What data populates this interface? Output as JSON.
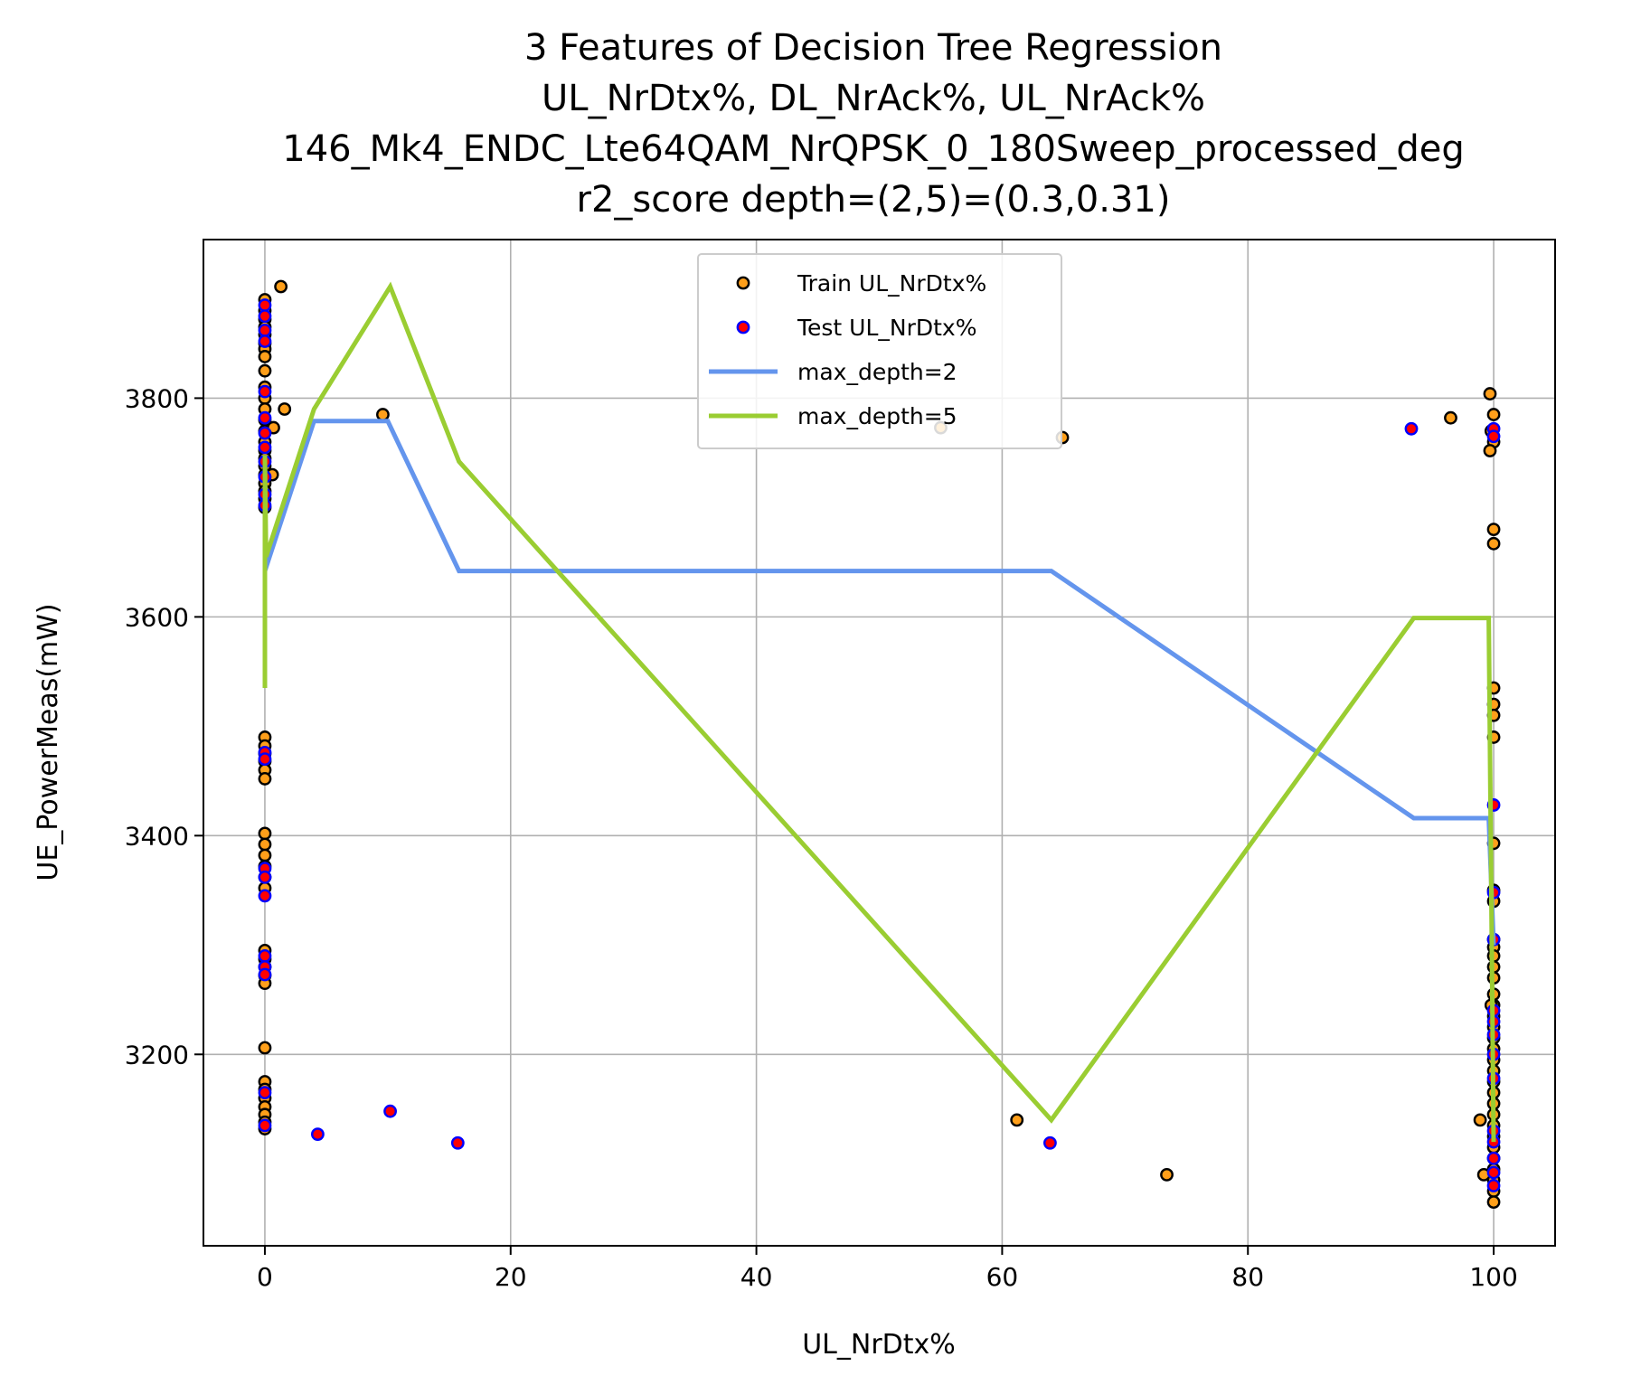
{
  "chart_data": {
    "type": "scatter",
    "title_lines": [
      "3 Features of Decision Tree Regression",
      "UL_NrDtx%, DL_NrAck%, UL_NrAck%",
      "146_Mk4_ENDC_Lte64QAM_NrQPSK_0_180Sweep_processed_deg",
      "r2_score depth=(2,5)=(0.3,0.31)"
    ],
    "xlabel": "UL_NrDtx%",
    "ylabel": "UE_PowerMeas(mW)",
    "xlim": [
      -5,
      105
    ],
    "ylim": [
      3025,
      3945
    ],
    "xticks": [
      0,
      20,
      40,
      60,
      80,
      100
    ],
    "yticks": [
      3200,
      3400,
      3600,
      3800
    ],
    "grid": true,
    "legend_position": "upper-center",
    "series": [
      {
        "name": "Train UL_NrDtx%",
        "kind": "scatter",
        "color": "#ff9f1a",
        "edge": "#000000",
        "points": [
          [
            0,
            3890
          ],
          [
            0,
            3880
          ],
          [
            0,
            3872
          ],
          [
            0,
            3865
          ],
          [
            0,
            3858
          ],
          [
            0,
            3850
          ],
          [
            0,
            3845
          ],
          [
            0,
            3838
          ],
          [
            0,
            3825
          ],
          [
            0,
            3810
          ],
          [
            0,
            3800
          ],
          [
            0,
            3790
          ],
          [
            0,
            3780
          ],
          [
            0,
            3770
          ],
          [
            0,
            3760
          ],
          [
            0,
            3752
          ],
          [
            0,
            3745
          ],
          [
            0,
            3738
          ],
          [
            0,
            3730
          ],
          [
            0,
            3722
          ],
          [
            0,
            3715
          ],
          [
            0,
            3708
          ],
          [
            0,
            3700
          ],
          [
            1.3,
            3902
          ],
          [
            1.6,
            3790
          ],
          [
            0.7,
            3773
          ],
          [
            0.6,
            3730
          ],
          [
            9.6,
            3785
          ],
          [
            55,
            3773
          ],
          [
            64.9,
            3764
          ],
          [
            0,
            3490
          ],
          [
            0,
            3482
          ],
          [
            0,
            3475
          ],
          [
            0,
            3468
          ],
          [
            0,
            3460
          ],
          [
            0,
            3452
          ],
          [
            0,
            3402
          ],
          [
            0,
            3392
          ],
          [
            0,
            3382
          ],
          [
            0,
            3372
          ],
          [
            0,
            3362
          ],
          [
            0,
            3352
          ],
          [
            0,
            3295
          ],
          [
            0,
            3287
          ],
          [
            0,
            3280
          ],
          [
            0,
            3272
          ],
          [
            0,
            3265
          ],
          [
            0,
            3206
          ],
          [
            0,
            3175
          ],
          [
            0,
            3168
          ],
          [
            0,
            3160
          ],
          [
            0,
            3152
          ],
          [
            0,
            3145
          ],
          [
            0,
            3138
          ],
          [
            0,
            3132
          ],
          [
            61.2,
            3140
          ],
          [
            73.4,
            3090
          ],
          [
            96.5,
            3782
          ],
          [
            99.7,
            3804
          ],
          [
            100,
            3785
          ],
          [
            99.8,
            3770
          ],
          [
            100,
            3760
          ],
          [
            99.7,
            3752
          ],
          [
            100,
            3680
          ],
          [
            100,
            3667
          ],
          [
            100,
            3535
          ],
          [
            100,
            3520
          ],
          [
            100,
            3510
          ],
          [
            100,
            3490
          ],
          [
            100,
            3393
          ],
          [
            100,
            3350
          ],
          [
            100,
            3340
          ],
          [
            100,
            3305
          ],
          [
            100,
            3298
          ],
          [
            100,
            3290
          ],
          [
            100,
            3280
          ],
          [
            100,
            3270
          ],
          [
            100,
            3255
          ],
          [
            100,
            3245
          ],
          [
            99.8,
            3245
          ],
          [
            100,
            3235
          ],
          [
            100,
            3225
          ],
          [
            100,
            3215
          ],
          [
            100,
            3205
          ],
          [
            100,
            3195
          ],
          [
            100,
            3185
          ],
          [
            100,
            3175
          ],
          [
            100,
            3165
          ],
          [
            100,
            3155
          ],
          [
            100,
            3145
          ],
          [
            100,
            3135
          ],
          [
            100,
            3125
          ],
          [
            100,
            3115
          ],
          [
            100,
            3105
          ],
          [
            100,
            3095
          ],
          [
            100,
            3085
          ],
          [
            100,
            3075
          ],
          [
            100,
            3065
          ],
          [
            99.2,
            3090
          ],
          [
            98.9,
            3140
          ]
        ]
      },
      {
        "name": "Test UL_NrDtx%",
        "kind": "scatter",
        "color": "#ff0000",
        "edge": "#0000ff",
        "points": [
          [
            0,
            3885
          ],
          [
            0,
            3875
          ],
          [
            0,
            3862
          ],
          [
            0,
            3852
          ],
          [
            0,
            3806
          ],
          [
            0,
            3782
          ],
          [
            0,
            3768
          ],
          [
            0,
            3755
          ],
          [
            0,
            3742
          ],
          [
            0,
            3728
          ],
          [
            0,
            3712
          ],
          [
            0,
            3702
          ],
          [
            0,
            3476
          ],
          [
            0,
            3470
          ],
          [
            0,
            3370
          ],
          [
            0,
            3362
          ],
          [
            0,
            3345
          ],
          [
            0,
            3290
          ],
          [
            0,
            3280
          ],
          [
            0,
            3273
          ],
          [
            0,
            3165
          ],
          [
            0,
            3135
          ],
          [
            4.3,
            3127
          ],
          [
            10.2,
            3148
          ],
          [
            15.7,
            3119
          ],
          [
            63.9,
            3119
          ],
          [
            93.3,
            3772
          ],
          [
            100,
            3772
          ],
          [
            100,
            3765
          ],
          [
            100,
            3428
          ],
          [
            100,
            3348
          ],
          [
            100,
            3305
          ],
          [
            100,
            3240
          ],
          [
            100,
            3230
          ],
          [
            100,
            3218
          ],
          [
            100,
            3200
          ],
          [
            100,
            3178
          ],
          [
            100,
            3130
          ],
          [
            100,
            3120
          ],
          [
            100,
            3105
          ],
          [
            100,
            3092
          ],
          [
            100,
            3080
          ]
        ]
      },
      {
        "name": "max_depth=2",
        "kind": "line",
        "color": "#6495ed",
        "points": [
          [
            0,
            3642
          ],
          [
            4,
            3779
          ],
          [
            10,
            3779
          ],
          [
            15.8,
            3642
          ],
          [
            64,
            3642
          ],
          [
            93.5,
            3416
          ],
          [
            99.6,
            3416
          ],
          [
            100,
            3300
          ]
        ]
      },
      {
        "name": "max_depth=5",
        "kind": "line",
        "color": "#9acd32",
        "points": [
          [
            0,
            3535
          ],
          [
            0,
            3748
          ],
          [
            0.1,
            3655
          ],
          [
            4,
            3790
          ],
          [
            10.2,
            3902
          ],
          [
            15.8,
            3742
          ],
          [
            64,
            3140
          ],
          [
            93.5,
            3599
          ],
          [
            99.6,
            3599
          ],
          [
            100,
            3120
          ]
        ]
      }
    ]
  }
}
